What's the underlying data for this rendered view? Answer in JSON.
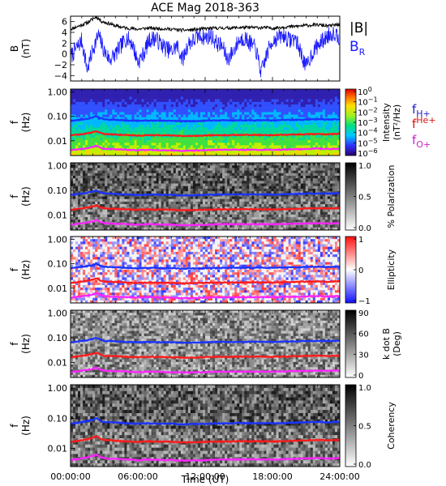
{
  "chart_data": {
    "type": "line",
    "title": "ACE Mag 2018-363",
    "xlabel": "Time (UT)",
    "x_ticks": [
      "00:00:00",
      "06:00:00",
      "12:00:00",
      "18:00:00",
      "24:00:00"
    ],
    "x_range_hours": [
      0,
      24
    ],
    "panels": [
      {
        "id": "b_field",
        "ylabel": [
          "B",
          "(nT)"
        ],
        "ylim": [
          -5,
          7
        ],
        "y_ticks": [
          "6",
          "4",
          "2",
          "0",
          "−2",
          "−4"
        ],
        "y_tick_values": [
          6,
          4,
          2,
          0,
          -2,
          -4
        ],
        "legend": [
          {
            "label": "|B|",
            "color": "#000000"
          },
          {
            "label": "B",
            "sub": "R",
            "color": "#1a1aff"
          }
        ],
        "series": [
          {
            "name": "|B|",
            "color": "#000000",
            "x": [
              0,
              0.5,
              1,
              1.5,
              2,
              2.3,
              2.8,
              3.5,
              4,
              5,
              6,
              7,
              8,
              9,
              10,
              11,
              12,
              13,
              14,
              15,
              16,
              17,
              18,
              19,
              20,
              21,
              22,
              23,
              24
            ],
            "values": [
              4.6,
              5.0,
              5.4,
              5.8,
              6.5,
              6.9,
              6.0,
              5.6,
              5.2,
              4.8,
              4.6,
              4.8,
              4.7,
              4.6,
              4.4,
              4.5,
              4.7,
              4.8,
              4.8,
              4.9,
              4.9,
              4.9,
              4.8,
              5.0,
              5.1,
              5.3,
              5.4,
              5.2,
              5.5
            ]
          },
          {
            "name": "B_R",
            "color": "#1a1aff",
            "x": [
              0,
              0.5,
              1,
              1.5,
              2,
              2.5,
              3,
              3.5,
              4,
              4.5,
              5,
              5.5,
              6,
              6.5,
              7,
              7.5,
              8,
              8.5,
              9,
              9.5,
              10,
              10.5,
              11,
              11.5,
              12,
              12.5,
              13,
              13.5,
              14,
              14.5,
              15,
              15.5,
              16,
              16.5,
              17,
              17.5,
              18,
              18.5,
              19,
              19.5,
              20,
              20.5,
              21,
              21.5,
              22,
              22.5,
              23,
              23.5,
              24
            ],
            "values": [
              -0.5,
              1.0,
              2.5,
              -3.0,
              1.0,
              3.5,
              0.5,
              -1.0,
              0.0,
              1.5,
              3.0,
              2.0,
              -1.5,
              0.0,
              2.5,
              3.0,
              2.0,
              1.0,
              0.5,
              1.5,
              -1.0,
              2.0,
              2.5,
              3.5,
              3.0,
              3.5,
              2.0,
              1.5,
              -1.0,
              0.5,
              2.5,
              3.0,
              2.0,
              1.0,
              -3.5,
              0.0,
              2.5,
              3.0,
              3.5,
              2.5,
              3.0,
              0.5,
              -2.5,
              0.0,
              1.5,
              2.5,
              3.5,
              4.0,
              3.0
            ]
          }
        ]
      },
      {
        "id": "intensity",
        "ylabel": [
          "f",
          "(Hz)"
        ],
        "y_ticks": [
          "1.00",
          "0.10",
          "0.01"
        ],
        "y_tick_values": [
          1.0,
          0.1,
          0.01
        ],
        "ylim": [
          0.0025,
          1.3
        ],
        "scale": "log",
        "colorbar": {
          "colormap": "rainbow",
          "ticks": [
            {
              "base": "10",
              "exp": "0"
            },
            {
              "base": "10",
              "exp": "−1"
            },
            {
              "base": "10",
              "exp": "−2"
            },
            {
              "base": "10",
              "exp": "−3"
            },
            {
              "base": "10",
              "exp": "−4"
            },
            {
              "base": "10",
              "exp": "−5"
            },
            {
              "base": "10",
              "exp": "−6"
            }
          ],
          "label_line1": "Intensity",
          "label_line2": "(nT²/Hz)"
        },
        "gyro_legend": [
          {
            "base": "f",
            "sub": "H+",
            "color": "#2020cc"
          },
          {
            "base": "f",
            "sup": "He+",
            "color": "#dd1111"
          },
          {
            "base": "f",
            "sub": "O+",
            "color": "#cc22cc"
          }
        ]
      },
      {
        "id": "polarization",
        "ylabel": [
          "f",
          "(Hz)"
        ],
        "y_ticks": [
          "1.00",
          "0.10",
          "0.01"
        ],
        "y_tick_values": [
          1.0,
          0.1,
          0.01
        ],
        "ylim": [
          0.0025,
          1.3
        ],
        "colorbar": {
          "colormap": "gray",
          "ticks": [
            "1.0",
            "0.5",
            "0.0"
          ],
          "label": "% Polarization"
        }
      },
      {
        "id": "ellipticity",
        "ylabel": [
          "f",
          "(Hz)"
        ],
        "y_ticks": [
          "1.00",
          "0.10",
          "0.01"
        ],
        "y_tick_values": [
          1.0,
          0.1,
          0.01
        ],
        "ylim": [
          0.0025,
          1.3
        ],
        "colorbar": {
          "colormap": "bwr",
          "ticks": [
            "1",
            "0",
            "−1"
          ],
          "label": "Ellipticity"
        }
      },
      {
        "id": "kdotb",
        "ylabel": [
          "f",
          "(Hz)"
        ],
        "y_ticks": [
          "1.00",
          "0.10",
          "0.01"
        ],
        "y_tick_values": [
          1.0,
          0.1,
          0.01
        ],
        "ylim": [
          0.0025,
          1.3
        ],
        "colorbar": {
          "colormap": "gray_r",
          "ticks": [
            "90",
            "60",
            "30",
            "0"
          ],
          "label_line1": "k dot B",
          "label_line2": "(Deg)"
        }
      },
      {
        "id": "coherency",
        "ylabel": [
          "f",
          "(Hz)"
        ],
        "y_ticks": [
          "1.00",
          "0.10",
          "0.01"
        ],
        "y_tick_values": [
          1.0,
          0.1,
          0.01
        ],
        "ylim": [
          0.0025,
          1.3
        ],
        "colorbar": {
          "colormap": "gray",
          "ticks": [
            "1.0",
            "0.5",
            "0.0"
          ],
          "label": "Coherency"
        }
      }
    ],
    "gyrofrequency_lines": [
      {
        "name": "f_H+",
        "color": "#1a33ff",
        "x": [
          0,
          1,
          1.5,
          2,
          2.3,
          2.6,
          3,
          4,
          5,
          6,
          7,
          8,
          9,
          10,
          11,
          12,
          13,
          14,
          15,
          16,
          17,
          18,
          19,
          20,
          21,
          22,
          23,
          24
        ],
        "values": [
          0.065,
          0.075,
          0.08,
          0.09,
          0.1,
          0.085,
          0.075,
          0.072,
          0.068,
          0.066,
          0.068,
          0.067,
          0.066,
          0.063,
          0.064,
          0.066,
          0.068,
          0.068,
          0.069,
          0.069,
          0.069,
          0.068,
          0.07,
          0.072,
          0.074,
          0.076,
          0.074,
          0.077
        ]
      },
      {
        "name": "f_He+",
        "color": "#ff1a1a",
        "x": [
          0,
          1,
          1.5,
          2,
          2.3,
          2.6,
          3,
          4,
          5,
          6,
          7,
          8,
          9,
          10,
          11,
          12,
          13,
          14,
          15,
          16,
          17,
          18,
          19,
          20,
          21,
          22,
          23,
          24
        ],
        "values": [
          0.0163,
          0.0188,
          0.02,
          0.0225,
          0.025,
          0.0213,
          0.0188,
          0.018,
          0.017,
          0.0165,
          0.017,
          0.0168,
          0.0165,
          0.0158,
          0.016,
          0.0165,
          0.017,
          0.017,
          0.0173,
          0.0173,
          0.0173,
          0.017,
          0.0175,
          0.018,
          0.0185,
          0.019,
          0.0185,
          0.0193
        ]
      },
      {
        "name": "f_O+",
        "color": "#ff22ff",
        "x": [
          0,
          1,
          1.5,
          2,
          2.3,
          2.6,
          3,
          4,
          5,
          6,
          7,
          8,
          9,
          10,
          11,
          12,
          13,
          14,
          15,
          16,
          17,
          18,
          19,
          20,
          21,
          22,
          23,
          24
        ],
        "values": [
          0.0041,
          0.0047,
          0.005,
          0.0056,
          0.0063,
          0.0053,
          0.0047,
          0.0045,
          0.0043,
          0.0041,
          0.0043,
          0.0042,
          0.0041,
          0.0039,
          0.004,
          0.0041,
          0.0043,
          0.0043,
          0.0043,
          0.0043,
          0.0043,
          0.0043,
          0.0044,
          0.0045,
          0.0046,
          0.0048,
          0.0046,
          0.0048
        ]
      }
    ]
  }
}
